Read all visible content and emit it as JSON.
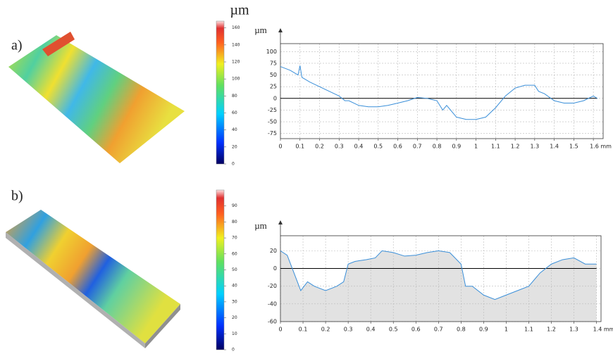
{
  "chart_data": [
    {
      "type": "line",
      "panel_label": "a)",
      "y_label": "µm",
      "colorbar": {
        "unit": "µm",
        "lim": [
          0,
          168
        ],
        "ticks": [
          0,
          20,
          40,
          60,
          80,
          100,
          120,
          140,
          160
        ]
      },
      "x": [
        0,
        0.05,
        0.09,
        0.1,
        0.11,
        0.15,
        0.2,
        0.25,
        0.3,
        0.33,
        0.35,
        0.4,
        0.45,
        0.5,
        0.55,
        0.6,
        0.65,
        0.7,
        0.75,
        0.8,
        0.83,
        0.85,
        0.9,
        0.95,
        1.0,
        1.05,
        1.1,
        1.15,
        1.2,
        1.25,
        1.3,
        1.32,
        1.35,
        1.4,
        1.45,
        1.5,
        1.55,
        1.6,
        1.62
      ],
      "series": [
        {
          "color": "#3a8fd9",
          "values": [
            68,
            60,
            50,
            70,
            45,
            35,
            25,
            15,
            5,
            -5,
            -5,
            -15,
            -18,
            -18,
            -15,
            -10,
            -5,
            2,
            0,
            -5,
            -25,
            -15,
            -40,
            -45,
            -45,
            -40,
            -20,
            5,
            22,
            28,
            28,
            15,
            10,
            -5,
            -10,
            -10,
            -5,
            5,
            0
          ]
        }
      ],
      "xlim": [
        0,
        1.65
      ],
      "ylim": [
        -86,
        117
      ],
      "xticks": [
        0,
        0.1,
        0.2,
        0.3,
        0.4,
        0.5,
        0.6,
        0.7,
        0.8,
        0.9,
        1,
        1.1,
        1.2,
        1.3,
        1.4,
        1.5,
        {
          "value": 1.6,
          "label": "1.6 mm"
        }
      ],
      "yticks": [
        -75,
        -50,
        -25,
        0,
        25,
        50,
        75,
        100
      ],
      "grid": true,
      "fill": false
    },
    {
      "type": "line",
      "panel_label": "b)",
      "y_label": "µm",
      "colorbar": {
        "unit": "µm",
        "lim": [
          0,
          100
        ],
        "ticks": [
          0,
          10,
          20,
          30,
          40,
          50,
          60,
          70,
          80,
          90
        ]
      },
      "x": [
        0,
        0.03,
        0.06,
        0.09,
        0.12,
        0.15,
        0.2,
        0.25,
        0.28,
        0.3,
        0.33,
        0.38,
        0.42,
        0.45,
        0.5,
        0.55,
        0.6,
        0.65,
        0.7,
        0.75,
        0.8,
        0.82,
        0.85,
        0.9,
        0.95,
        1.0,
        1.05,
        1.1,
        1.15,
        1.2,
        1.25,
        1.3,
        1.35,
        1.4
      ],
      "series": [
        {
          "color": "#3a8fd9",
          "values": [
            20,
            15,
            -5,
            -25,
            -15,
            -20,
            -25,
            -20,
            -15,
            5,
            8,
            10,
            12,
            20,
            18,
            14,
            15,
            18,
            20,
            18,
            5,
            -20,
            -20,
            -30,
            -35,
            -30,
            -25,
            -20,
            -5,
            5,
            10,
            12,
            5,
            5
          ]
        }
      ],
      "xlim": [
        0,
        1.42
      ],
      "ylim": [
        -60,
        37
      ],
      "xticks": [
        0,
        0.1,
        0.2,
        0.3,
        0.4,
        0.5,
        0.6,
        0.7,
        0.8,
        0.9,
        1,
        1.1,
        1.2,
        1.3,
        {
          "value": 1.4,
          "label": "1.4 mm"
        }
      ],
      "yticks": [
        -60,
        -40,
        -20,
        0,
        20
      ],
      "grid": true,
      "fill": true
    }
  ]
}
